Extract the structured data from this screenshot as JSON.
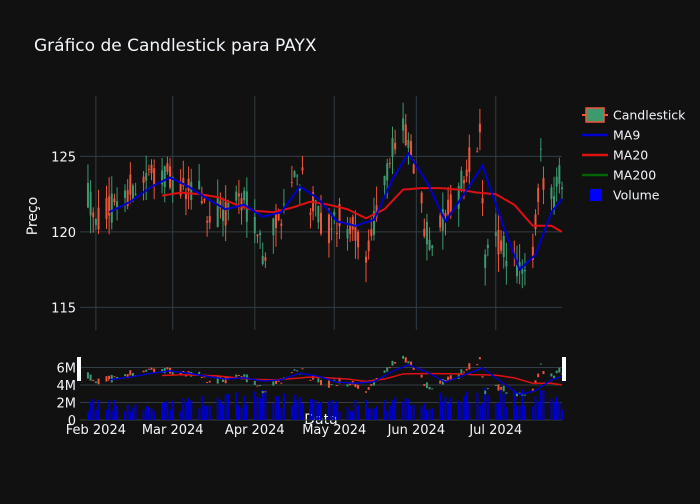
{
  "chart_data": {
    "type": "candlestick",
    "title": "Gráfico de Candlestick para PAYX",
    "xlabel": "Data",
    "ylabel": "Preço",
    "main_ylim": [
      113.5,
      129.0
    ],
    "main_yticks": [
      115,
      120,
      125
    ],
    "volume_ylim": [
      0,
      8000000
    ],
    "volume_yticks": [
      {
        "value": 0,
        "label": "0"
      },
      {
        "value": 2000000,
        "label": "2M"
      },
      {
        "value": 4000000,
        "label": "4M"
      },
      {
        "value": 6000000,
        "label": "6M"
      }
    ],
    "xlim": [
      "2024-01-26",
      "2024-07-26"
    ],
    "xticks": [
      {
        "date": "2024-02-01",
        "label": "Feb 2024"
      },
      {
        "date": "2024-03-01",
        "label": "Mar 2024"
      },
      {
        "date": "2024-04-01",
        "label": "Apr 2024"
      },
      {
        "date": "2024-05-01",
        "label": "May 2024"
      },
      {
        "date": "2024-06-01",
        "label": "Jun 2024"
      },
      {
        "date": "2024-07-01",
        "label": "Jul 2024"
      }
    ],
    "legend": {
      "placement": "top-right",
      "items": [
        {
          "name": "Candlestick",
          "kind": "candle"
        },
        {
          "name": "MA9",
          "kind": "line",
          "color": "#0000cc"
        },
        {
          "name": "MA20",
          "kind": "line",
          "color": "#dd1111"
        },
        {
          "name": "MA200",
          "kind": "line",
          "color": "#006400"
        },
        {
          "name": "Volume",
          "kind": "square",
          "color": "#0000ff"
        }
      ]
    },
    "colors": {
      "increasing": "#3d9970",
      "decreasing": "#ef553b",
      "ma9": "#0000cc",
      "ma20": "#dd1111",
      "volume": "#0000cc",
      "grid": "#333d44"
    },
    "price_waypoints": [
      {
        "date": "2024-01-29",
        "price": 122.5
      },
      {
        "date": "2024-02-02",
        "price": 120.8
      },
      {
        "date": "2024-02-07",
        "price": 121.6
      },
      {
        "date": "2024-02-13",
        "price": 122.7
      },
      {
        "date": "2024-02-20",
        "price": 123.6
      },
      {
        "date": "2024-02-26",
        "price": 124.2
      },
      {
        "date": "2024-03-01",
        "price": 123.0
      },
      {
        "date": "2024-03-06",
        "price": 122.6
      },
      {
        "date": "2024-03-11",
        "price": 122.9
      },
      {
        "date": "2024-03-15",
        "price": 121.0
      },
      {
        "date": "2024-03-20",
        "price": 121.3
      },
      {
        "date": "2024-03-26",
        "price": 122.3
      },
      {
        "date": "2024-04-01",
        "price": 121.0
      },
      {
        "date": "2024-04-04",
        "price": 118.6
      },
      {
        "date": "2024-04-09",
        "price": 120.5
      },
      {
        "date": "2024-04-15",
        "price": 123.5
      },
      {
        "date": "2024-04-19",
        "price": 123.8
      },
      {
        "date": "2024-04-24",
        "price": 121.0
      },
      {
        "date": "2024-04-29",
        "price": 120.2
      },
      {
        "date": "2024-05-03",
        "price": 120.8
      },
      {
        "date": "2024-05-08",
        "price": 120.0
      },
      {
        "date": "2024-05-13",
        "price": 118.8
      },
      {
        "date": "2024-05-17",
        "price": 121.5
      },
      {
        "date": "2024-05-22",
        "price": 124.8
      },
      {
        "date": "2024-05-27",
        "price": 126.5
      },
      {
        "date": "2024-05-31",
        "price": 124.8
      },
      {
        "date": "2024-06-04",
        "price": 120.5
      },
      {
        "date": "2024-06-07",
        "price": 119.3
      },
      {
        "date": "2024-06-12",
        "price": 120.8
      },
      {
        "date": "2024-06-17",
        "price": 122.5
      },
      {
        "date": "2024-06-21",
        "price": 124.6
      },
      {
        "date": "2024-06-25",
        "price": 126.2
      },
      {
        "date": "2024-06-27",
        "price": 118.5
      },
      {
        "date": "2024-07-02",
        "price": 119.2
      },
      {
        "date": "2024-07-08",
        "price": 118.0
      },
      {
        "date": "2024-07-12",
        "price": 116.5
      },
      {
        "date": "2024-07-15",
        "price": 118.5
      },
      {
        "date": "2024-07-18",
        "price": 124.5
      },
      {
        "date": "2024-07-22",
        "price": 122.0
      },
      {
        "date": "2024-07-25",
        "price": 123.5
      }
    ],
    "ma9_waypoints": [
      {
        "date": "2024-02-06",
        "price": 121.3
      },
      {
        "date": "2024-02-14",
        "price": 122.0
      },
      {
        "date": "2024-02-22",
        "price": 123.0
      },
      {
        "date": "2024-02-29",
        "price": 123.6
      },
      {
        "date": "2024-03-07",
        "price": 123.0
      },
      {
        "date": "2024-03-14",
        "price": 122.2
      },
      {
        "date": "2024-03-21",
        "price": 121.5
      },
      {
        "date": "2024-03-28",
        "price": 121.8
      },
      {
        "date": "2024-04-04",
        "price": 121.0
      },
      {
        "date": "2024-04-11",
        "price": 121.3
      },
      {
        "date": "2024-04-18",
        "price": 123.0
      },
      {
        "date": "2024-04-25",
        "price": 122.2
      },
      {
        "date": "2024-05-02",
        "price": 120.7
      },
      {
        "date": "2024-05-09",
        "price": 120.4
      },
      {
        "date": "2024-05-16",
        "price": 120.8
      },
      {
        "date": "2024-05-23",
        "price": 123.5
      },
      {
        "date": "2024-05-29",
        "price": 125.2
      },
      {
        "date": "2024-06-05",
        "price": 123.3
      },
      {
        "date": "2024-06-12",
        "price": 120.7
      },
      {
        "date": "2024-06-19",
        "price": 122.5
      },
      {
        "date": "2024-06-26",
        "price": 124.4
      },
      {
        "date": "2024-07-03",
        "price": 120.8
      },
      {
        "date": "2024-07-10",
        "price": 117.5
      },
      {
        "date": "2024-07-16",
        "price": 118.5
      },
      {
        "date": "2024-07-22",
        "price": 121.3
      },
      {
        "date": "2024-07-26",
        "price": 122.2
      }
    ],
    "ma20_waypoints": [
      {
        "date": "2024-02-26",
        "price": 122.4
      },
      {
        "date": "2024-03-04",
        "price": 122.6
      },
      {
        "date": "2024-03-11",
        "price": 122.5
      },
      {
        "date": "2024-03-18",
        "price": 122.3
      },
      {
        "date": "2024-03-25",
        "price": 121.8
      },
      {
        "date": "2024-04-01",
        "price": 121.4
      },
      {
        "date": "2024-04-08",
        "price": 121.3
      },
      {
        "date": "2024-04-15",
        "price": 121.6
      },
      {
        "date": "2024-04-22",
        "price": 122.0
      },
      {
        "date": "2024-04-29",
        "price": 121.8
      },
      {
        "date": "2024-05-06",
        "price": 121.5
      },
      {
        "date": "2024-05-13",
        "price": 120.9
      },
      {
        "date": "2024-05-20",
        "price": 121.5
      },
      {
        "date": "2024-05-27",
        "price": 122.8
      },
      {
        "date": "2024-06-03",
        "price": 122.9
      },
      {
        "date": "2024-06-10",
        "price": 122.9
      },
      {
        "date": "2024-06-17",
        "price": 122.8
      },
      {
        "date": "2024-06-24",
        "price": 122.6
      },
      {
        "date": "2024-07-01",
        "price": 122.5
      },
      {
        "date": "2024-07-08",
        "price": 121.8
      },
      {
        "date": "2024-07-15",
        "price": 120.4
      },
      {
        "date": "2024-07-22",
        "price": 120.4
      },
      {
        "date": "2024-07-26",
        "price": 120.0
      }
    ],
    "volume_waypoints": [
      {
        "date": "2024-01-29",
        "value": 1700000
      },
      {
        "date": "2024-02-15",
        "value": 1500000
      },
      {
        "date": "2024-03-15",
        "value": 2000000
      },
      {
        "date": "2024-04-05",
        "value": 2600000
      },
      {
        "date": "2024-05-01",
        "value": 1600000
      },
      {
        "date": "2024-06-03",
        "value": 2000000
      },
      {
        "date": "2024-06-28",
        "value": 2700000
      },
      {
        "date": "2024-07-19",
        "value": 2400000
      },
      {
        "date": "2024-07-26",
        "value": 1800000
      }
    ]
  }
}
